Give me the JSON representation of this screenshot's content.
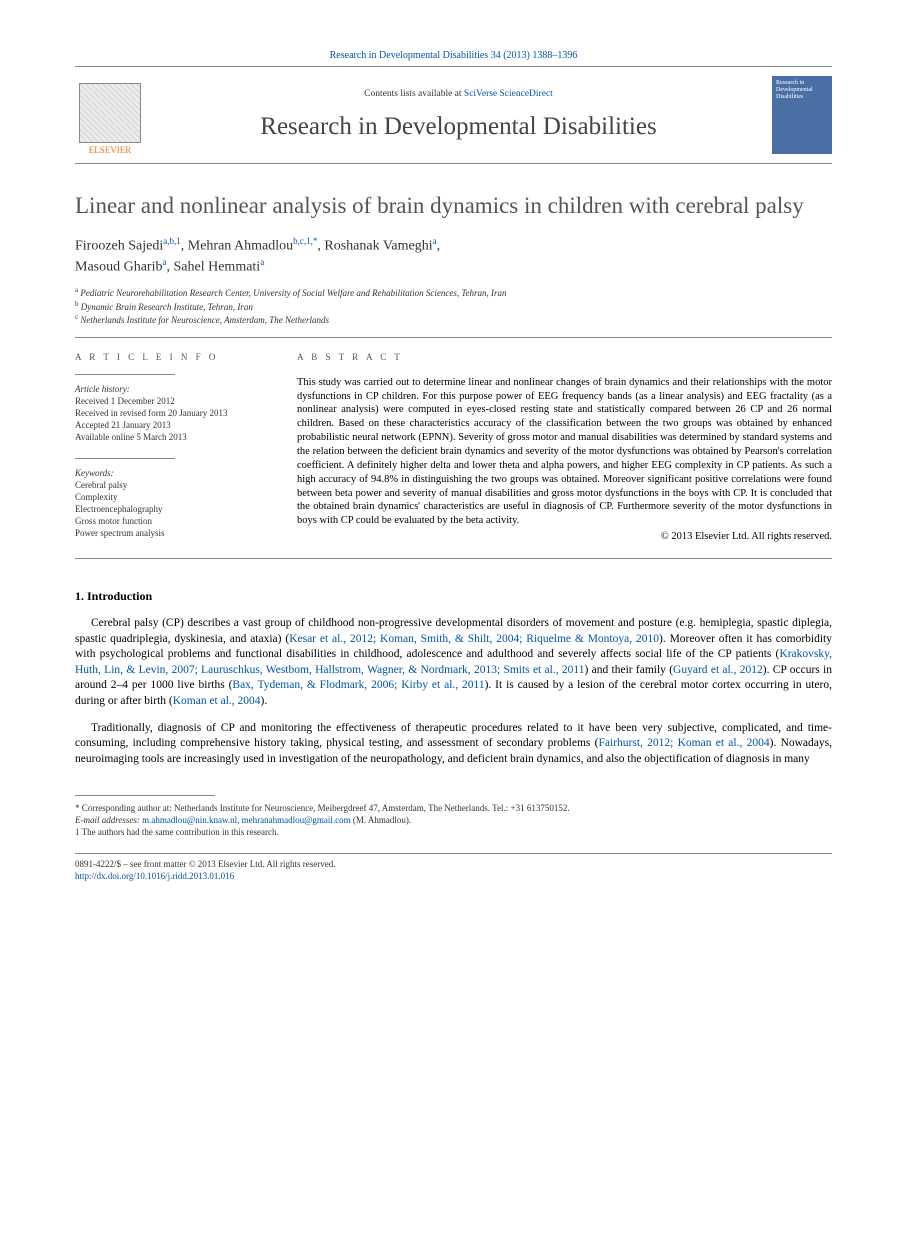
{
  "header": {
    "journal_ref_text": "Research in Developmental Disabilities 34 (2013) 1388–1396",
    "contents_prefix": "Contents lists available at ",
    "contents_link": "SciVerse ScienceDirect",
    "journal_name": "Research in Developmental Disabilities",
    "publisher_name": "ELSEVIER",
    "cover_text": "Research in Developmental Disabilities"
  },
  "title": "Linear and nonlinear analysis of brain dynamics in children with cerebral palsy",
  "authors": [
    {
      "name": "Firoozeh Sajedi",
      "aff": "a,b,1"
    },
    {
      "name": "Mehran Ahmadlou",
      "aff": "b,c,1,*"
    },
    {
      "name": "Roshanak Vameghi",
      "aff": "a"
    },
    {
      "name": "Masoud Gharib",
      "aff": "a"
    },
    {
      "name": "Sahel Hemmati",
      "aff": "a"
    }
  ],
  "affiliations": [
    {
      "key": "a",
      "text": "Pediatric Neurorehabilitation Research Center, University of Social Welfare and Rehabilitation Sciences, Tehran, Iran"
    },
    {
      "key": "b",
      "text": "Dynamic Brain Research Institute, Tehran, Iran"
    },
    {
      "key": "c",
      "text": "Netherlands Institute for Neuroscience, Amsterdam, The Netherlands"
    }
  ],
  "info": {
    "heading": "A R T I C L E  I N F O",
    "history_label": "Article history:",
    "history": [
      "Received 1 December 2012",
      "Received in revised form 20 January 2013",
      "Accepted 21 January 2013",
      "Available online 5 March 2013"
    ],
    "keywords_label": "Keywords:",
    "keywords": [
      "Cerebral palsy",
      "Complexity",
      "Electroencephalography",
      "Gross motor function",
      "Power spectrum analysis"
    ]
  },
  "abstract": {
    "heading": "A B S T R A C T",
    "text": "This study was carried out to determine linear and nonlinear changes of brain dynamics and their relationships with the motor dysfunctions in CP children. For this purpose power of EEG frequency bands (as a linear analysis) and EEG fractality (as a nonlinear analysis) were computed in eyes-closed resting state and statistically compared between 26 CP and 26 normal children. Based on these characteristics accuracy of the classification between the two groups was obtained by enhanced probabilistic neural network (EPNN). Severity of gross motor and manual disabilities was determined by standard systems and the relation between the deficient brain dynamics and severity of the motor dysfunctions was obtained by Pearson's correlation coefficient. A definitely higher delta and lower theta and alpha powers, and higher EEG complexity in CP patients. As such a high accuracy of 94.8% in distinguishing the two groups was obtained. Moreover significant positive correlations were found between beta power and severity of manual disabilities and gross motor dysfunctions in the boys with CP. It is concluded that the obtained brain dynamics' characteristics are useful in diagnosis of CP. Furthermore severity of the motor dysfunctions in boys with CP could be evaluated by the beta activity.",
    "copyright": "© 2013 Elsevier Ltd. All rights reserved."
  },
  "section1_heading": "1. Introduction",
  "para1": {
    "t1": "Cerebral palsy (CP) describes a vast group of childhood non-progressive developmental disorders of movement and posture (e.g. hemiplegia, spastic diplegia, spastic quadriplegia, dyskinesia, and ataxia) (",
    "c1": "Kesar et al., 2012; Koman, Smith, & Shilt, 2004; Riquelme & Montoya, 2010",
    "t2": "). Moreover often it has comorbidity with psychological problems and functional disabilities in childhood, adolescence and adulthood and severely affects social life of the CP patients (",
    "c2": "Krakovsky, Huth, Lin, & Levin, 2007; Lauruschkus, Westbom, Hallstrom, Wagner, & Nordmark, 2013; Smits et al., 2011",
    "t3": ") and their family (",
    "c3": "Guyard et al., 2012",
    "t4": "). CP occurs in around 2–4 per 1000 live births (",
    "c4": "Bax, Tydeman, & Flodmark, 2006; Kirby et al., 2011",
    "t5": "). It is caused by a lesion of the cerebral motor cortex occurring in utero, during or after birth (",
    "c5": "Koman et al., 2004",
    "t6": ")."
  },
  "para2": {
    "t1": "Traditionally, diagnosis of CP and monitoring the effectiveness of therapeutic procedures related to it have been very subjective, complicated, and time-consuming, including comprehensive history taking, physical testing, and assessment of secondary problems (",
    "c1": "Fairhurst, 2012; Koman et al., 2004",
    "t2": "). Nowadays, neuroimaging tools are increasingly used in investigation of the neuropathology, and deficient brain dynamics, and also the objectification of diagnosis in many"
  },
  "footnotes": {
    "corr_label": "* Corresponding author at: Netherlands Institute for Neuroscience, Meibergdreef 47, Amsterdam, The Netherlands. Tel.: +31 613750152.",
    "email_label": "E-mail addresses:",
    "email1": "m.ahmadlou@nin.knaw.nl",
    "email2": "mehranahmadlou@gmail.com",
    "email_suffix": " (M. Ahmadlou).",
    "note1": "1 The authors had the same contribution in this research."
  },
  "footer": {
    "line1": "0891-4222/$ – see front matter © 2013 Elsevier Ltd. All rights reserved.",
    "doi": "http://dx.doi.org/10.1016/j.ridd.2013.01.016"
  },
  "colors": {
    "link": "#0055aa",
    "publisher": "#e8771f",
    "cover_bg": "#4a6fa5",
    "rule": "#888888",
    "title": "#555555"
  }
}
